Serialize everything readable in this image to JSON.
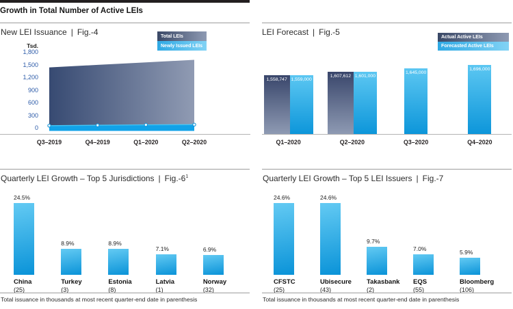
{
  "header": {
    "title": "Growth in Total Number of Active LEIs"
  },
  "ui": {
    "separator": "|"
  },
  "colors": {
    "header_black": "#231f20",
    "accent_light_blue": "#29a9e4",
    "accent_dark_navy": "#3a4866",
    "tick_blue": "#2b5aa8",
    "rule_gray": "#9c9c9c",
    "axis_gray": "#b3b3b3",
    "bar_light_gradient": [
      "#5cc7f2",
      "#0d96da"
    ],
    "bar_dark_gradient": [
      "#39466b",
      "#8e9ab3"
    ]
  },
  "chart_data": [
    {
      "type": "area",
      "title": "New LEI Issuance",
      "fig_label": "Fig.-4",
      "ylabel": "Tsd.",
      "unit": "thousands",
      "x": [
        "Q3–2019",
        "Q4–2019",
        "Q1–2020",
        "Q2–2020"
      ],
      "series": [
        {
          "name": "Total LEIs",
          "values": [
            1450,
            1510,
            1570,
            1630
          ],
          "estimated": true
        },
        {
          "name": "Newly Issued LEIs",
          "values": [
            35,
            45,
            55,
            60
          ],
          "estimated": true
        }
      ],
      "ylim": [
        0,
        1800
      ],
      "y_ticks": [
        "1,800",
        "1,500",
        "1,200",
        "900",
        "600",
        "300",
        "0"
      ],
      "grid": false,
      "legend_position": "top-right"
    },
    {
      "type": "bar",
      "title": "LEI Forecast",
      "fig_label": "Fig.-5",
      "x": [
        "Q1–2020",
        "Q2–2020",
        "Q3–2020",
        "Q4–2020"
      ],
      "series": [
        {
          "name": "Actual Active LEIs",
          "values": [
            1558747,
            1607612,
            null,
            null
          ],
          "labels": [
            "1,558,747",
            "1,607,612",
            "",
            ""
          ]
        },
        {
          "name": "Forecasted Active LEIs",
          "values": [
            1559000,
            1601000,
            1645000,
            1696000
          ],
          "labels": [
            "1,559,000",
            "1,601,000",
            "1,645,000",
            "1,696,000"
          ]
        }
      ],
      "grid": false,
      "legend_position": "top-right",
      "scale_min": 780000,
      "scale_max": 1830000
    },
    {
      "type": "bar",
      "title": "Quarterly LEI Growth – Top 5 Jurisdictions",
      "fig_label": "Fig.-6",
      "fig_superscript": "1",
      "categories": [
        "China",
        "Turkey",
        "Estonia",
        "Latvia",
        "Norway"
      ],
      "counts": [
        "(25)",
        "(3)",
        "(8)",
        "(1)",
        "(32)"
      ],
      "values": [
        24.5,
        8.9,
        8.9,
        7.1,
        6.9
      ],
      "value_labels": [
        "24.5%",
        "8.9%",
        "8.9%",
        "7.1%",
        "6.9%"
      ],
      "grid": false,
      "footnote": "Total issuance in thousands at most recent quarter-end date in parenthesis"
    },
    {
      "type": "bar",
      "title": "Quarterly LEI Growth – Top 5 LEI Issuers",
      "fig_label": "Fig.-7",
      "categories": [
        "CFSTC",
        "Ubisecure",
        "Takasbank",
        "EQS",
        "Bloomberg"
      ],
      "counts": [
        "(25)",
        "(43)",
        "(2)",
        "(55)",
        "(106)"
      ],
      "values": [
        24.6,
        24.6,
        9.7,
        7.0,
        5.9
      ],
      "value_labels": [
        "24.6%",
        "24.6%",
        "9.7%",
        "7.0%",
        "5.9%"
      ],
      "grid": false,
      "footnote": "Total issuance in thousands at most recent quarter-end date in parenthesis"
    }
  ]
}
